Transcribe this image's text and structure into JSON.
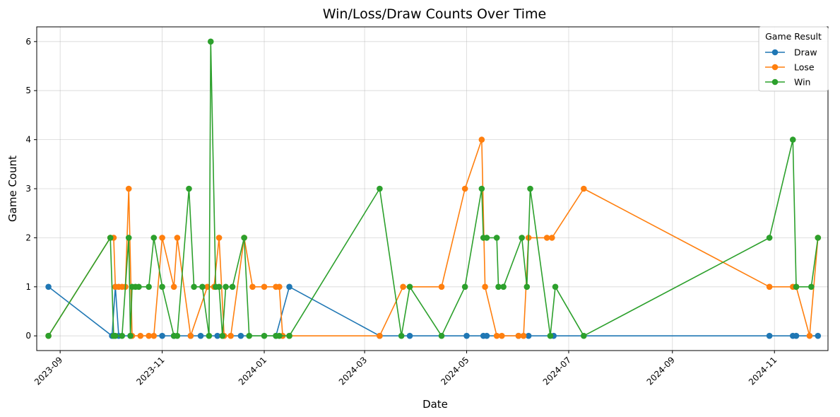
{
  "chart_data": {
    "type": "line",
    "title": "Win/Loss/Draw Counts Over Time",
    "xlabel": "Date",
    "ylabel": "Game Count",
    "xlim": [
      "2023-08-18",
      "2024-12-03"
    ],
    "ylim": [
      -0.3,
      6.3
    ],
    "x_ticks": [
      "2023-09",
      "2023-11",
      "2024-01",
      "2024-03",
      "2024-05",
      "2024-07",
      "2024-09",
      "2024-11"
    ],
    "y_ticks": [
      0,
      1,
      2,
      3,
      4,
      5,
      6
    ],
    "grid": true,
    "legend": {
      "title": "Game Result",
      "position": "top-right"
    },
    "series": [
      {
        "name": "Draw",
        "color": "#1f77b4",
        "points": [
          [
            "2023-08-25",
            1
          ],
          [
            "2023-10-02",
            0
          ],
          [
            "2023-10-04",
            1
          ],
          [
            "2023-10-06",
            0
          ],
          [
            "2023-10-13",
            0
          ],
          [
            "2023-11-01",
            0
          ],
          [
            "2023-11-08",
            0
          ],
          [
            "2023-11-18",
            0
          ],
          [
            "2023-11-24",
            0
          ],
          [
            "2023-12-04",
            0
          ],
          [
            "2023-12-18",
            0
          ],
          [
            "2024-01-08",
            0
          ],
          [
            "2024-01-16",
            1
          ],
          [
            "2024-03-10",
            0
          ],
          [
            "2024-03-28",
            0
          ],
          [
            "2024-05-01",
            0
          ],
          [
            "2024-05-11",
            0
          ],
          [
            "2024-05-13",
            0
          ],
          [
            "2024-06-01",
            0
          ],
          [
            "2024-06-07",
            0
          ],
          [
            "2024-06-22",
            0
          ],
          [
            "2024-10-29",
            0
          ],
          [
            "2024-11-12",
            0
          ],
          [
            "2024-11-14",
            0
          ],
          [
            "2024-11-27",
            0
          ]
        ]
      },
      {
        "name": "Lose",
        "color": "#ff7f0e",
        "points": [
          [
            "2023-08-25",
            0
          ],
          [
            "2023-10-01",
            2
          ],
          [
            "2023-10-03",
            2
          ],
          [
            "2023-10-04",
            1
          ],
          [
            "2023-10-06",
            1
          ],
          [
            "2023-10-08",
            1
          ],
          [
            "2023-10-10",
            1
          ],
          [
            "2023-10-12",
            3
          ],
          [
            "2023-10-14",
            0
          ],
          [
            "2023-10-19",
            0
          ],
          [
            "2023-10-24",
            0
          ],
          [
            "2023-10-27",
            0
          ],
          [
            "2023-11-01",
            2
          ],
          [
            "2023-11-08",
            1
          ],
          [
            "2023-11-10",
            2
          ],
          [
            "2023-11-18",
            0
          ],
          [
            "2023-11-28",
            1
          ],
          [
            "2023-12-02",
            1
          ],
          [
            "2023-12-05",
            2
          ],
          [
            "2023-12-08",
            0
          ],
          [
            "2023-12-12",
            0
          ],
          [
            "2023-12-20",
            2
          ],
          [
            "2023-12-25",
            1
          ],
          [
            "2024-01-01",
            1
          ],
          [
            "2024-01-08",
            1
          ],
          [
            "2024-01-10",
            1
          ],
          [
            "2024-01-12",
            0
          ],
          [
            "2024-01-16",
            0
          ],
          [
            "2024-03-10",
            0
          ],
          [
            "2024-03-24",
            1
          ],
          [
            "2024-04-16",
            1
          ],
          [
            "2024-04-30",
            3
          ],
          [
            "2024-05-10",
            4
          ],
          [
            "2024-05-12",
            1
          ],
          [
            "2024-05-19",
            0
          ],
          [
            "2024-05-22",
            0
          ],
          [
            "2024-06-01",
            0
          ],
          [
            "2024-06-04",
            0
          ],
          [
            "2024-06-07",
            2
          ],
          [
            "2024-06-18",
            2
          ],
          [
            "2024-06-21",
            2
          ],
          [
            "2024-07-10",
            3
          ],
          [
            "2024-10-29",
            1
          ],
          [
            "2024-11-12",
            1
          ],
          [
            "2024-11-14",
            1
          ],
          [
            "2024-11-22",
            0
          ],
          [
            "2024-11-27",
            2
          ]
        ]
      },
      {
        "name": "Win",
        "color": "#2ca02c",
        "points": [
          [
            "2023-08-25",
            0
          ],
          [
            "2023-10-01",
            2
          ],
          [
            "2023-10-03",
            0
          ],
          [
            "2023-10-04",
            0
          ],
          [
            "2023-10-08",
            0
          ],
          [
            "2023-10-12",
            2
          ],
          [
            "2023-10-13",
            0
          ],
          [
            "2023-10-14",
            1
          ],
          [
            "2023-10-16",
            1
          ],
          [
            "2023-10-18",
            1
          ],
          [
            "2023-10-24",
            1
          ],
          [
            "2023-10-27",
            2
          ],
          [
            "2023-11-01",
            1
          ],
          [
            "2023-11-08",
            0
          ],
          [
            "2023-11-10",
            0
          ],
          [
            "2023-11-17",
            3
          ],
          [
            "2023-11-20",
            1
          ],
          [
            "2023-11-25",
            1
          ],
          [
            "2023-11-29",
            0
          ],
          [
            "2023-11-30",
            6
          ],
          [
            "2023-12-03",
            1
          ],
          [
            "2023-12-05",
            1
          ],
          [
            "2023-12-07",
            0
          ],
          [
            "2023-12-09",
            1
          ],
          [
            "2023-12-13",
            1
          ],
          [
            "2023-12-20",
            2
          ],
          [
            "2023-12-23",
            0
          ],
          [
            "2024-01-01",
            0
          ],
          [
            "2024-01-08",
            0
          ],
          [
            "2024-01-10",
            0
          ],
          [
            "2024-01-16",
            0
          ],
          [
            "2024-03-10",
            3
          ],
          [
            "2024-03-23",
            0
          ],
          [
            "2024-03-28",
            1
          ],
          [
            "2024-04-16",
            0
          ],
          [
            "2024-04-30",
            1
          ],
          [
            "2024-05-10",
            3
          ],
          [
            "2024-05-11",
            2
          ],
          [
            "2024-05-13",
            2
          ],
          [
            "2024-05-19",
            2
          ],
          [
            "2024-05-20",
            1
          ],
          [
            "2024-05-23",
            1
          ],
          [
            "2024-06-03",
            2
          ],
          [
            "2024-06-06",
            1
          ],
          [
            "2024-06-08",
            3
          ],
          [
            "2024-06-20",
            0
          ],
          [
            "2024-06-23",
            1
          ],
          [
            "2024-07-10",
            0
          ],
          [
            "2024-10-29",
            2
          ],
          [
            "2024-11-12",
            4
          ],
          [
            "2024-11-14",
            1
          ],
          [
            "2024-11-23",
            1
          ],
          [
            "2024-11-27",
            2
          ]
        ]
      }
    ]
  }
}
